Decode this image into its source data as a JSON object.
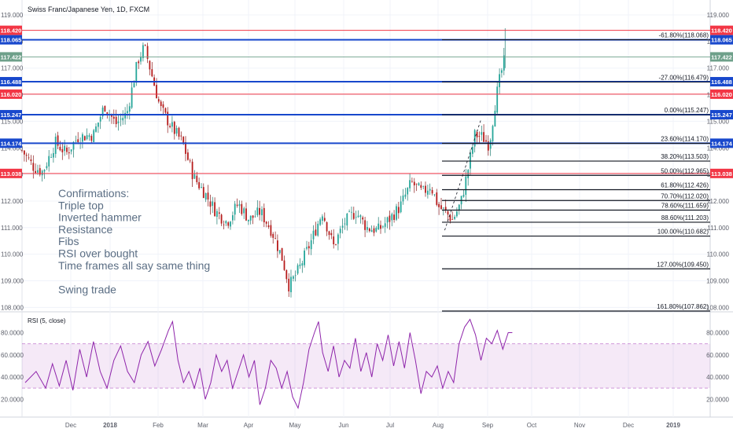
{
  "chart_data": {
    "type": "candlestick",
    "title": "Swiss Franc/Japanese Yen, 1D, FXCM",
    "x_axis": {
      "labels": [
        "Dec",
        "2018",
        "Feb",
        "Mar",
        "Apr",
        "May",
        "Jun",
        "Jul",
        "Aug",
        "Sep",
        "Oct",
        "Nov",
        "Dec",
        "2019"
      ]
    },
    "price_axis": {
      "ylim": [
        108.0,
        119.0
      ],
      "ticks": [
        "119.000",
        "118.000",
        "117.000",
        "116.000",
        "115.000",
        "114.000",
        "113.000",
        "112.000",
        "111.000",
        "110.000",
        "109.000",
        "108.000"
      ]
    },
    "price_path": [
      [
        "2017-11-17",
        113.9
      ],
      [
        "2017-11-24",
        113.3
      ],
      [
        "2017-11-30",
        113.1
      ],
      [
        "2017-12-08",
        114.2
      ],
      [
        "2017-12-15",
        113.8
      ],
      [
        "2017-12-22",
        114.4
      ],
      [
        "2018-01-01",
        114.5
      ],
      [
        "2018-01-08",
        115.6
      ],
      [
        "2018-01-15",
        114.9
      ],
      [
        "2018-01-22",
        115.3
      ],
      [
        "2018-01-29",
        117.3
      ],
      [
        "2018-02-02",
        117.8
      ],
      [
        "2018-02-06",
        116.9
      ],
      [
        "2018-02-12",
        115.5
      ],
      [
        "2018-02-19",
        114.8
      ],
      [
        "2018-02-26",
        114.2
      ],
      [
        "2018-03-05",
        112.9
      ],
      [
        "2018-03-12",
        112.3
      ],
      [
        "2018-03-19",
        111.6
      ],
      [
        "2018-03-26",
        111.2
      ],
      [
        "2018-04-02",
        111.9
      ],
      [
        "2018-04-09",
        111.3
      ],
      [
        "2018-04-16",
        111.6
      ],
      [
        "2018-04-23",
        110.9
      ],
      [
        "2018-04-30",
        109.8
      ],
      [
        "2018-05-04",
        108.8
      ],
      [
        "2018-05-10",
        109.4
      ],
      [
        "2018-05-18",
        110.5
      ],
      [
        "2018-05-25",
        111.6
      ],
      [
        "2018-06-01",
        110.3
      ],
      [
        "2018-06-08",
        111.2
      ],
      [
        "2018-06-15",
        111.6
      ],
      [
        "2018-06-22",
        111.0
      ],
      [
        "2018-06-29",
        110.9
      ],
      [
        "2018-07-06",
        111.3
      ],
      [
        "2018-07-13",
        111.8
      ],
      [
        "2018-07-20",
        112.7
      ],
      [
        "2018-07-27",
        112.3
      ],
      [
        "2018-08-01",
        112.6
      ],
      [
        "2018-08-06",
        111.8
      ],
      [
        "2018-08-10",
        111.6
      ],
      [
        "2018-08-15",
        111.3
      ],
      [
        "2018-08-20",
        111.9
      ],
      [
        "2018-08-24",
        113.0
      ],
      [
        "2018-08-29",
        114.5
      ],
      [
        "2018-09-03",
        114.4
      ],
      [
        "2018-09-07",
        114.1
      ],
      [
        "2018-09-11",
        115.8
      ],
      [
        "2018-09-14",
        116.7
      ],
      [
        "2018-09-17",
        117.4
      ]
    ],
    "horizontal_levels": [
      {
        "label": "118.420",
        "value": 118.42,
        "color": "#f23645"
      },
      {
        "label": "118.065",
        "value": 118.065,
        "color": "#1848cc"
      },
      {
        "label": "117.422",
        "value": 117.422,
        "color": "#6ea08a"
      },
      {
        "label": "116.488",
        "value": 116.488,
        "color": "#1848cc"
      },
      {
        "label": "116.020",
        "value": 116.02,
        "color": "#f23645"
      },
      {
        "label": "115.247",
        "value": 115.247,
        "color": "#1848cc"
      },
      {
        "label": "114.174",
        "value": 114.174,
        "color": "#1848cc"
      },
      {
        "label": "113.038",
        "value": 113.038,
        "color": "#f23645"
      }
    ],
    "fib_levels": [
      {
        "label": "-61.80%(118.068)",
        "value": 118.068
      },
      {
        "label": "-27.00%(116.479)",
        "value": 116.479
      },
      {
        "label": "0.00%(115.247)",
        "value": 115.247
      },
      {
        "label": "23.60%(114.170)",
        "value": 114.17
      },
      {
        "label": "38.20%(113.503)",
        "value": 113.503
      },
      {
        "label": "50.00%(112.965)",
        "value": 112.965
      },
      {
        "label": "61.80%(112.426)",
        "value": 112.426
      },
      {
        "label": "70.70%(112.020)",
        "value": 112.02
      },
      {
        "label": "78.60%(111.659)",
        "value": 111.659
      },
      {
        "label": "88.60%(111.203)",
        "value": 111.203
      },
      {
        "label": "100.00%(110.682)",
        "value": 110.682
      },
      {
        "label": "127.00%(109.450)",
        "value": 109.45
      },
      {
        "label": "161.80%(107.862)",
        "value": 107.862
      }
    ],
    "annotations": [
      "Confirmations:",
      "Triple top",
      "Inverted hammer",
      "Resistance",
      "Fibs",
      "RSI over bought",
      "Time frames all say same thing",
      "",
      "Swing trade"
    ],
    "rsi": {
      "label": "RSI (5, close)",
      "ylim": [
        10,
        95
      ],
      "band": [
        30,
        70
      ],
      "ticks": [
        "80.0000",
        "60.0000",
        "40.0000",
        "20.0000"
      ],
      "values": [
        [
          0,
          35
        ],
        [
          8,
          45
        ],
        [
          15,
          30
        ],
        [
          20,
          52
        ],
        [
          25,
          32
        ],
        [
          30,
          55
        ],
        [
          35,
          28
        ],
        [
          40,
          65
        ],
        [
          45,
          40
        ],
        [
          50,
          72
        ],
        [
          55,
          45
        ],
        [
          60,
          30
        ],
        [
          65,
          55
        ],
        [
          70,
          68
        ],
        [
          75,
          45
        ],
        [
          80,
          35
        ],
        [
          85,
          60
        ],
        [
          90,
          72
        ],
        [
          95,
          50
        ],
        [
          100,
          65
        ],
        [
          105,
          82
        ],
        [
          108,
          90
        ],
        [
          112,
          55
        ],
        [
          116,
          35
        ],
        [
          120,
          45
        ],
        [
          124,
          30
        ],
        [
          128,
          48
        ],
        [
          132,
          20
        ],
        [
          136,
          35
        ],
        [
          140,
          60
        ],
        [
          144,
          45
        ],
        [
          148,
          55
        ],
        [
          152,
          30
        ],
        [
          156,
          45
        ],
        [
          160,
          60
        ],
        [
          164,
          40
        ],
        [
          168,
          55
        ],
        [
          172,
          15
        ],
        [
          176,
          30
        ],
        [
          180,
          55
        ],
        [
          184,
          48
        ],
        [
          188,
          30
        ],
        [
          192,
          45
        ],
        [
          196,
          22
        ],
        [
          200,
          12
        ],
        [
          204,
          35
        ],
        [
          208,
          65
        ],
        [
          212,
          80
        ],
        [
          215,
          90
        ],
        [
          218,
          62
        ],
        [
          222,
          45
        ],
        [
          226,
          68
        ],
        [
          230,
          40
        ],
        [
          234,
          55
        ],
        [
          238,
          48
        ],
        [
          242,
          75
        ],
        [
          246,
          45
        ],
        [
          250,
          62
        ],
        [
          254,
          40
        ],
        [
          258,
          70
        ],
        [
          262,
          55
        ],
        [
          266,
          78
        ],
        [
          270,
          50
        ],
        [
          274,
          72
        ],
        [
          278,
          48
        ],
        [
          282,
          80
        ],
        [
          286,
          55
        ],
        [
          290,
          25
        ],
        [
          294,
          45
        ],
        [
          298,
          40
        ],
        [
          302,
          50
        ],
        [
          306,
          30
        ],
        [
          310,
          45
        ],
        [
          314,
          35
        ],
        [
          318,
          70
        ],
        [
          322,
          85
        ],
        [
          326,
          92
        ],
        [
          330,
          78
        ],
        [
          334,
          55
        ],
        [
          338,
          75
        ],
        [
          342,
          70
        ],
        [
          346,
          82
        ],
        [
          350,
          65
        ],
        [
          354,
          80
        ],
        [
          357,
          80
        ]
      ]
    }
  }
}
